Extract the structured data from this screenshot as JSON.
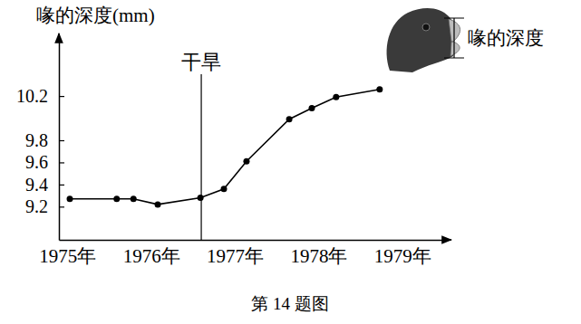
{
  "chart_data": {
    "type": "line",
    "y_label": "喙的深度(mm)",
    "caption": "第 14 题图",
    "illustration_label": "喙的深度",
    "x": [
      1975.03,
      1975.59,
      1975.79,
      1976.08,
      1976.59,
      1976.87,
      1977.14,
      1977.65,
      1977.92,
      1978.21,
      1978.73
    ],
    "values": [
      9.27,
      9.27,
      9.27,
      9.22,
      9.28,
      9.36,
      9.61,
      9.99,
      10.09,
      10.19,
      10.26
    ],
    "color": "#000000",
    "marker": "circle",
    "xlim": [
      1974.9,
      1979.5
    ],
    "xticks": [
      {
        "value": 1975,
        "label": "1975年"
      },
      {
        "value": 1976,
        "label": "1976年"
      },
      {
        "value": 1977,
        "label": "1977年"
      },
      {
        "value": 1978,
        "label": "1978年"
      },
      {
        "value": 1979,
        "label": "1979年"
      }
    ],
    "ylim": [
      8.9,
      10.7
    ],
    "yticks": [
      9.2,
      9.4,
      9.6,
      9.8,
      10.2
    ],
    "grid": false,
    "annotations": [
      {
        "text": "干旱",
        "x": 1976.6
      }
    ]
  }
}
